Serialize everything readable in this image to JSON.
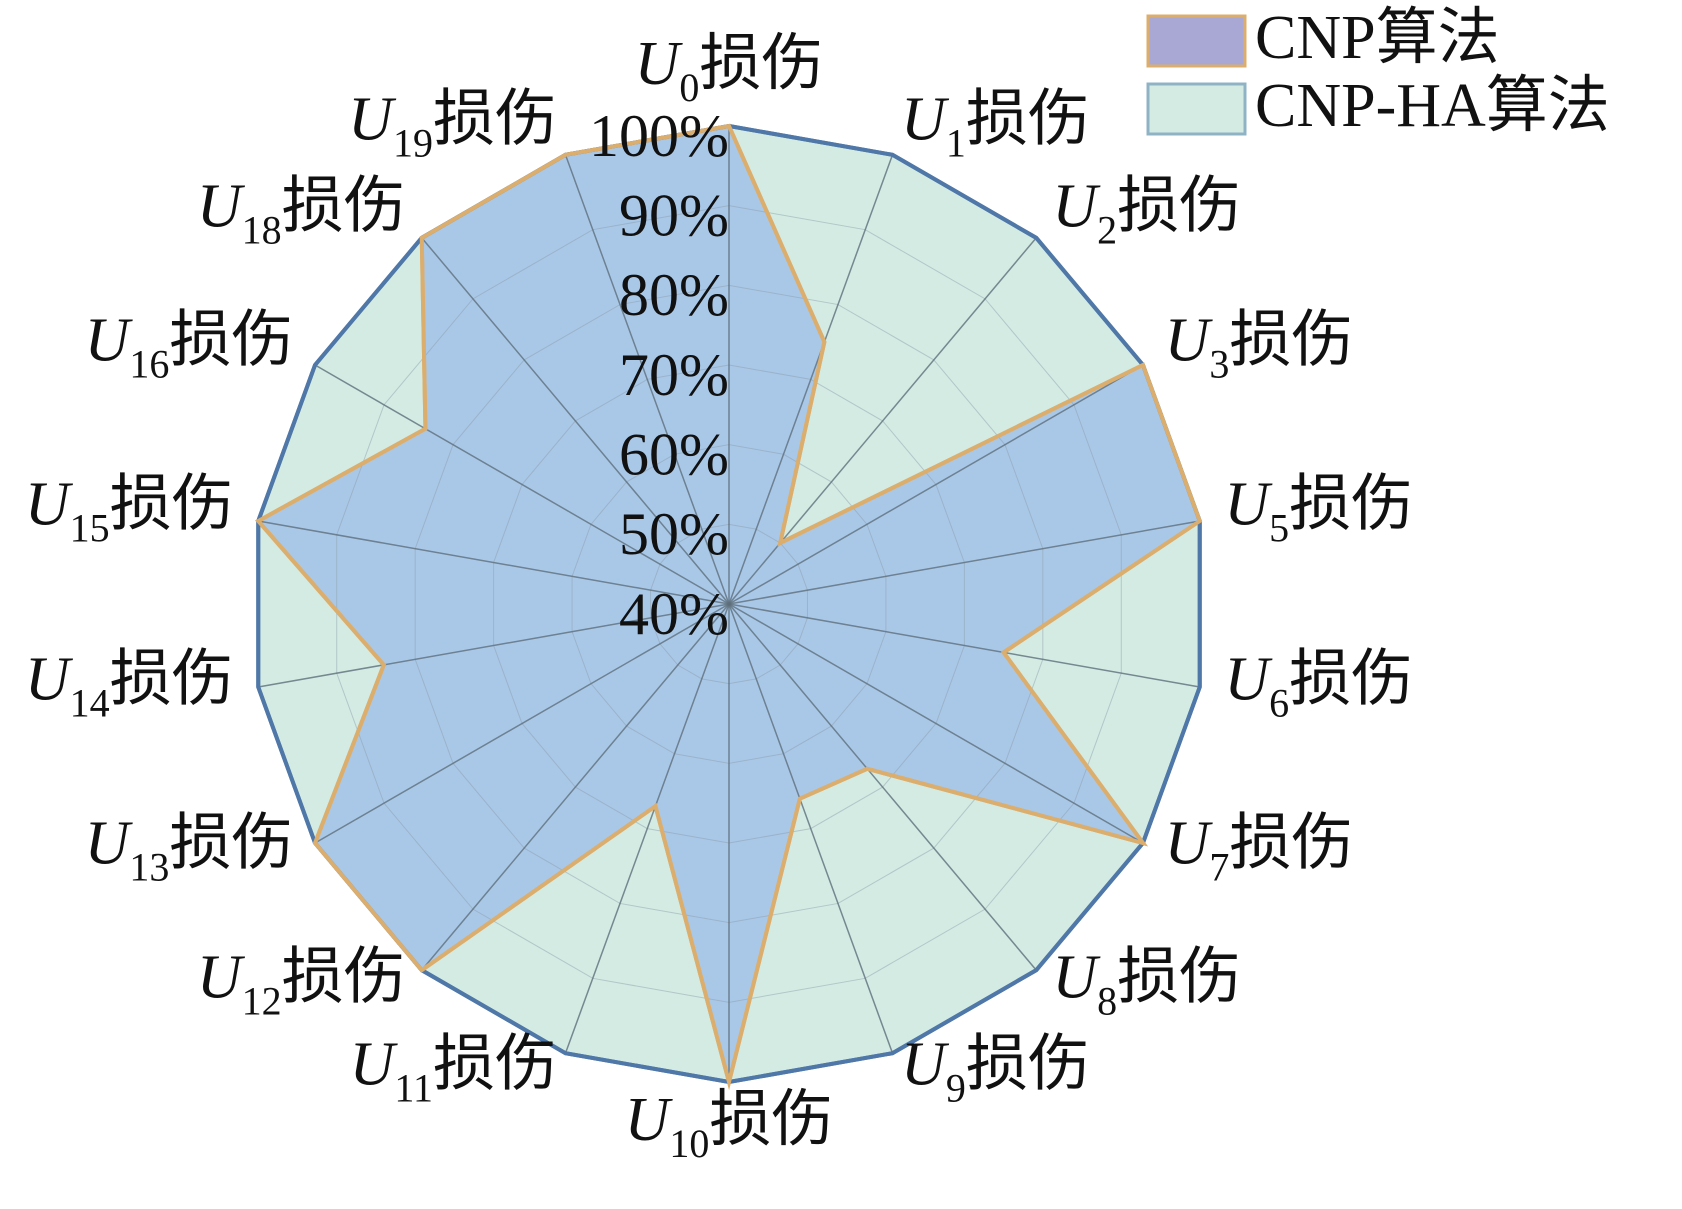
{
  "chart_data": {
    "type": "radar",
    "categories": [
      "U0损伤",
      "U1损伤",
      "U2损伤",
      "U3损伤",
      "U5损伤",
      "U6损伤",
      "U7损伤",
      "U8损伤",
      "U9损伤",
      "U10损伤",
      "U11损伤",
      "U12损伤",
      "U13损伤",
      "U14损伤",
      "U15损伤",
      "U16损伤",
      "U18损伤",
      "U19损伤"
    ],
    "series": [
      {
        "name": "CNP-HA算法",
        "color": "#d3ebe3",
        "stroke": "#4f78a8",
        "legend_stroke": "#8fb3c4",
        "values": [
          100,
          100,
          100,
          100,
          100,
          100,
          100,
          100,
          100,
          100,
          100,
          100,
          100,
          100,
          100,
          100,
          100,
          100
        ]
      },
      {
        "name": "CNP算法",
        "color": "#a9c8e8",
        "stroke": "#dcae6e",
        "legend_color": "#a9a8d4",
        "values": [
          100,
          75,
          50,
          100,
          100,
          75,
          100,
          67,
          66,
          100,
          67,
          100,
          100,
          84,
          100,
          84,
          100,
          100
        ]
      }
    ],
    "ylim": [
      40,
      100
    ],
    "yticks": [
      {
        "value": 40,
        "label": "40%"
      },
      {
        "value": 50,
        "label": "50%"
      },
      {
        "value": 60,
        "label": "60%"
      },
      {
        "value": 70,
        "label": "70%"
      },
      {
        "value": 80,
        "label": "80%"
      },
      {
        "value": 90,
        "label": "90%"
      },
      {
        "value": 100,
        "label": "100%"
      }
    ],
    "grid": true,
    "legend": "upper right"
  }
}
